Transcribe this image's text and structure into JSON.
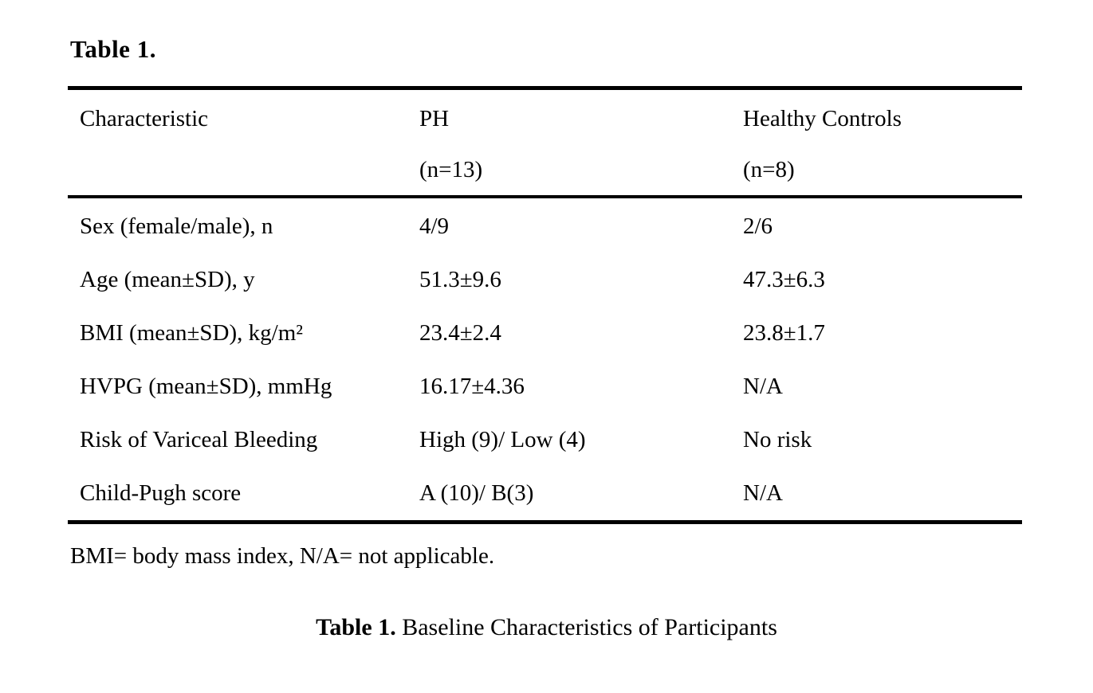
{
  "page": {
    "heading": "Table 1.",
    "footnote": "BMI= body mass index, N/A= not applicable.",
    "caption": {
      "prefix": "Table 1.",
      "text": " Baseline Characteristics of Participants"
    }
  },
  "table": {
    "columns": [
      {
        "title": "Characteristic",
        "subtitle": ""
      },
      {
        "title": "PH",
        "subtitle": "(n=13)"
      },
      {
        "title": "Healthy Controls",
        "subtitle": "(n=8)"
      }
    ],
    "rows": [
      {
        "label": "Sex (female/male), n",
        "ph": "4/9",
        "control": "2/6"
      },
      {
        "label": "Age (mean±SD), y",
        "ph": "51.3±9.6",
        "control": "47.3±6.3"
      },
      {
        "label": "BMI (mean±SD), kg/m²",
        "ph": "23.4±2.4",
        "control": "23.8±1.7"
      },
      {
        "label": "HVPG (mean±SD), mmHg",
        "ph": "16.17±4.36",
        "control": "N/A"
      },
      {
        "label": "Risk of Variceal Bleeding",
        "ph": "High (9)/ Low (4)",
        "control": "No risk"
      },
      {
        "label": "Child-Pugh score",
        "ph": "A (10)/ B(3)",
        "control": "N/A"
      }
    ]
  }
}
